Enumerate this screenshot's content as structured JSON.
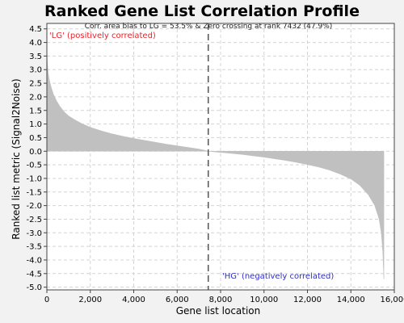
{
  "chart_data": {
    "type": "area",
    "title": "Ranked Gene List Correlation Profile",
    "subtitle": "Corr. area bias to LG = 53.5% & Zero crossing at rank 7432 (47.9%)",
    "xlabel": "Gene list location",
    "ylabel": "Ranked list metric (Signal2Noise)",
    "xlim": [
      0,
      16000
    ],
    "ylim": [
      -5.1,
      4.7
    ],
    "x_ticks": [
      0,
      2000,
      4000,
      6000,
      8000,
      10000,
      12000,
      14000,
      16000
    ],
    "x_tick_labels": [
      "0",
      "2,000",
      "4,000",
      "6,000",
      "8,000",
      "10,000",
      "12,000",
      "14,000",
      "16,000"
    ],
    "y_ticks": [
      4.5,
      4.0,
      3.5,
      3.0,
      2.5,
      2.0,
      1.5,
      1.0,
      0.5,
      0.0,
      -0.5,
      -1.0,
      -1.5,
      -2.0,
      -2.5,
      -3.0,
      -3.5,
      -4.0,
      -4.5,
      -5.0
    ],
    "y_tick_labels": [
      "4.5",
      "4.0",
      "3.5",
      "3.0",
      "2.5",
      "2.0",
      "1.5",
      "1.0",
      "0.5",
      "0.0",
      "-0.5",
      "-1.0",
      "-1.5",
      "-2.0",
      "-2.5",
      "-3.0",
      "-3.5",
      "-4.0",
      "-4.5",
      "-5.0"
    ],
    "grid": true,
    "zero_crossing": 7432,
    "positive_label": "'LG' (positively correlated)",
    "negative_label": "'HG' (negatively correlated)",
    "fill_color": "#c0c0c0",
    "positive_color": "#e8222a",
    "negative_color": "#2e2ec8",
    "series": [
      {
        "x": [
          0,
          20,
          60,
          120,
          200,
          300,
          450,
          600,
          800,
          1000,
          1300,
          1600,
          2000,
          2500,
          3000,
          3500,
          4000,
          4500,
          5000,
          5500,
          6000,
          6500,
          7000,
          7300,
          7432
        ],
        "values": [
          3.9,
          3.3,
          2.9,
          2.6,
          2.35,
          2.1,
          1.85,
          1.65,
          1.45,
          1.3,
          1.15,
          1.02,
          0.88,
          0.75,
          0.64,
          0.55,
          0.47,
          0.4,
          0.33,
          0.26,
          0.2,
          0.14,
          0.08,
          0.03,
          0.0
        ]
      },
      {
        "x": [
          7432,
          7800,
          8500,
          9000,
          9500,
          10000,
          10500,
          11000,
          11500,
          12000,
          12500,
          13000,
          13500,
          14000,
          14400,
          14800,
          15100,
          15300,
          15400,
          15470,
          15520
        ],
        "values": [
          0.0,
          -0.03,
          -0.08,
          -0.12,
          -0.17,
          -0.22,
          -0.28,
          -0.34,
          -0.41,
          -0.49,
          -0.58,
          -0.69,
          -0.84,
          -1.02,
          -1.25,
          -1.6,
          -2.0,
          -2.5,
          -3.0,
          -3.7,
          -4.7
        ]
      }
    ]
  }
}
